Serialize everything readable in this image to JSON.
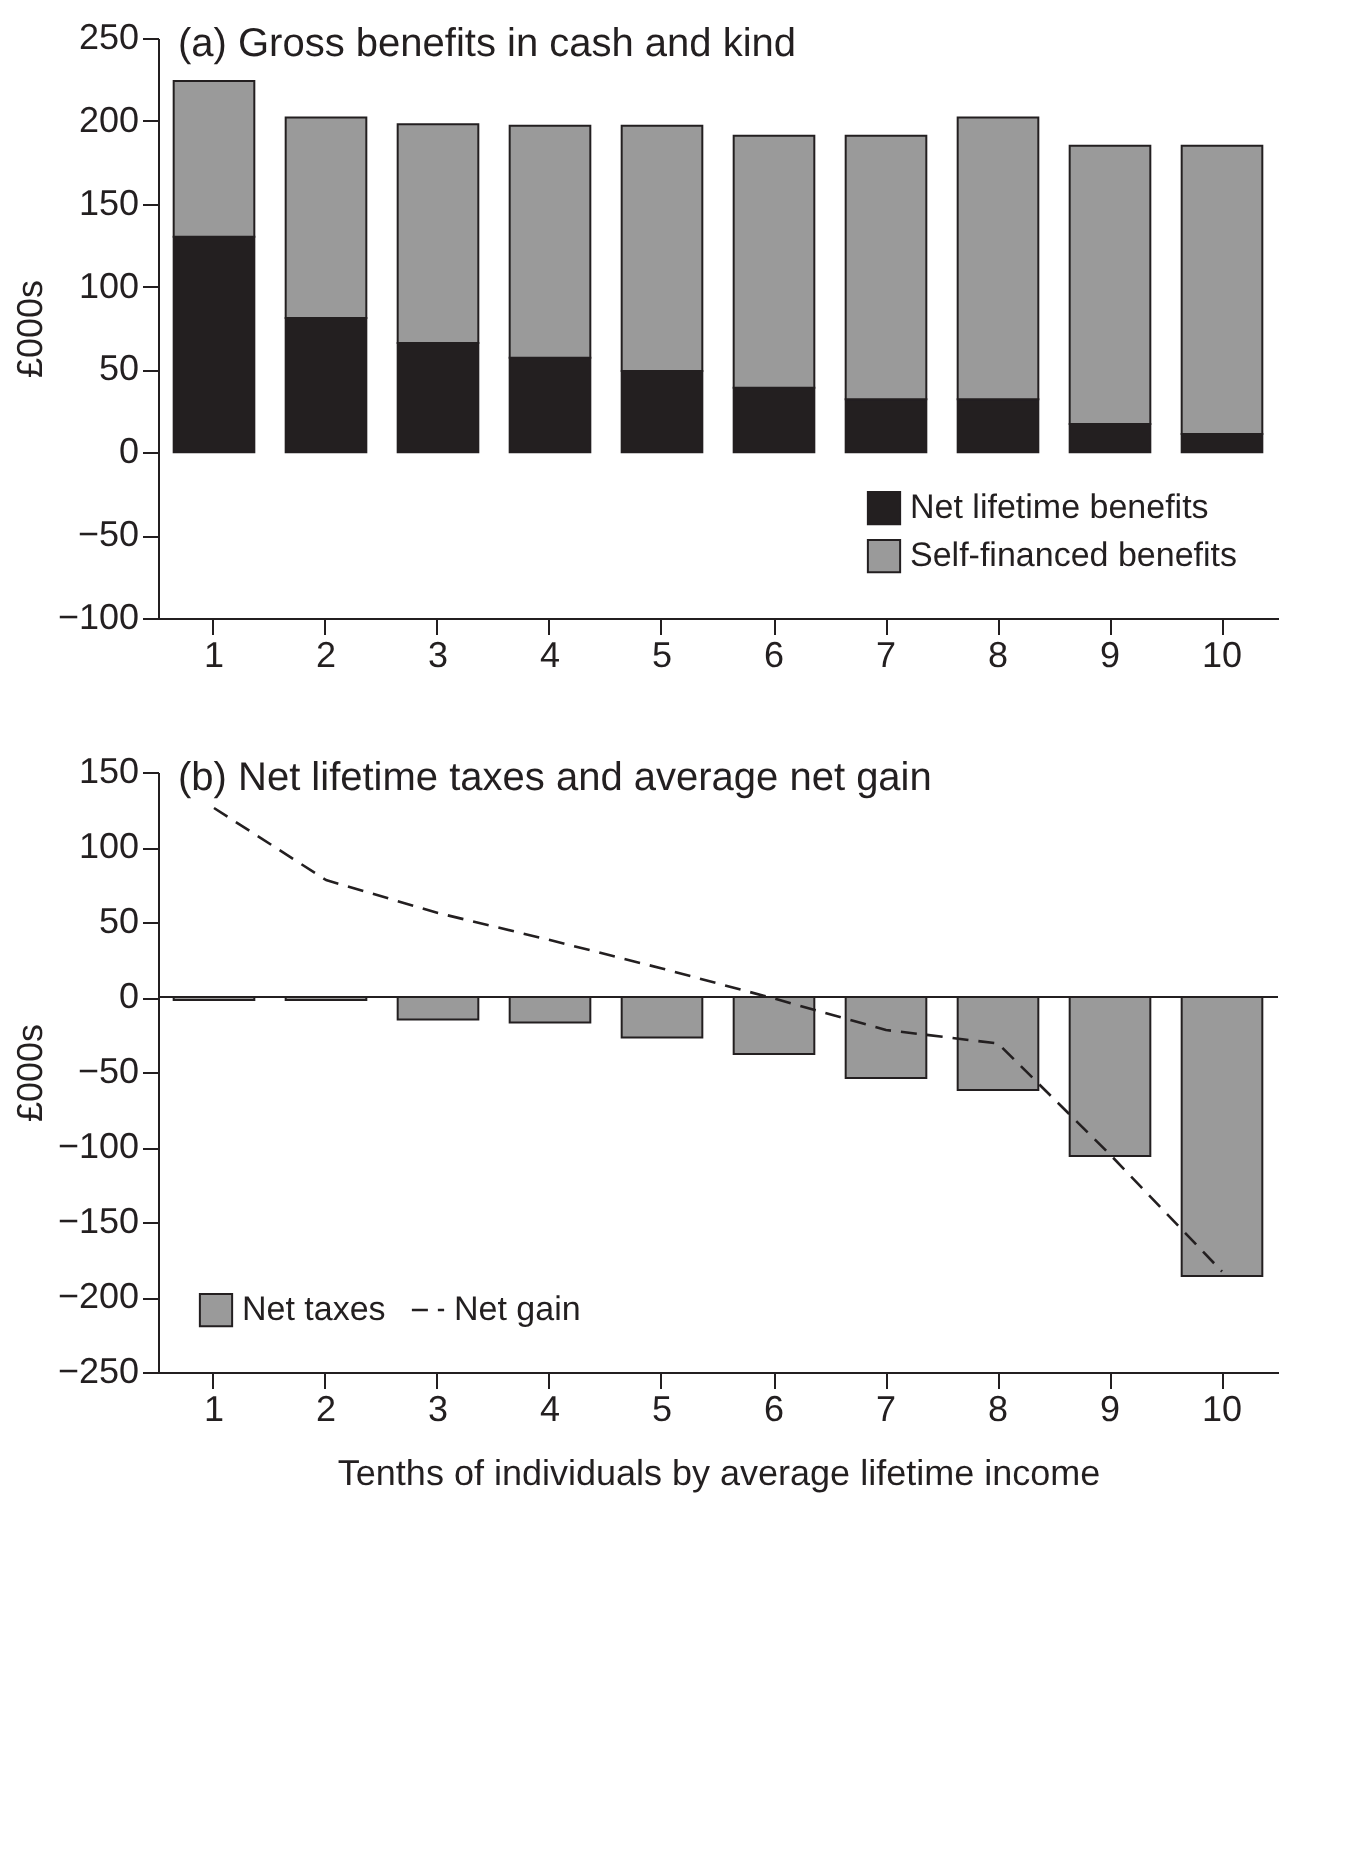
{
  "chart_data": [
    {
      "type": "bar",
      "title": "(a) Gross benefits in cash and kind",
      "ylabel": "£000s",
      "categories": [
        "1",
        "2",
        "3",
        "4",
        "5",
        "6",
        "7",
        "8",
        "9",
        "10"
      ],
      "stacked": true,
      "series": [
        {
          "name": "Net lifetime benefits",
          "color": "#231f20",
          "values": [
            130,
            81,
            66,
            57,
            49,
            39,
            32,
            32,
            17,
            11
          ]
        },
        {
          "name": "Self-financed benefits",
          "color": "#9a9a9a",
          "values": [
            94,
            121,
            132,
            140,
            148,
            152,
            159,
            170,
            168,
            174
          ]
        }
      ],
      "ylim": [
        -100,
        250
      ],
      "yticks": [
        -100,
        -50,
        0,
        50,
        100,
        150,
        200,
        250
      ],
      "grid": false,
      "legend": "bottom right"
    },
    {
      "type": "bar",
      "title": "(b) Net lifetime taxes and average net gain",
      "xlabel": "Tenths of individuals by average lifetime income",
      "ylabel": "£000s",
      "categories": [
        "1",
        "2",
        "3",
        "4",
        "5",
        "6",
        "7",
        "8",
        "9",
        "10"
      ],
      "series": [
        {
          "name": "Net taxes",
          "type": "bar",
          "color": "#9a9a9a",
          "values": [
            -2,
            -2,
            -15,
            -17,
            -27,
            -38,
            -54,
            -62,
            -106,
            -186
          ]
        },
        {
          "name": "Net gain",
          "type": "line",
          "color": "#231f20",
          "line_style": "dashed",
          "values": [
            126,
            78,
            56,
            38,
            19,
            -1,
            -22,
            -31,
            -105,
            -183
          ]
        }
      ],
      "ylim": [
        -250,
        150
      ],
      "yticks": [
        -250,
        -200,
        -150,
        -100,
        -50,
        0,
        50,
        100,
        150
      ],
      "ref_lines": [
        {
          "axis": "y",
          "value": 0
        }
      ],
      "grid": false,
      "legend": "bottom left"
    }
  ]
}
